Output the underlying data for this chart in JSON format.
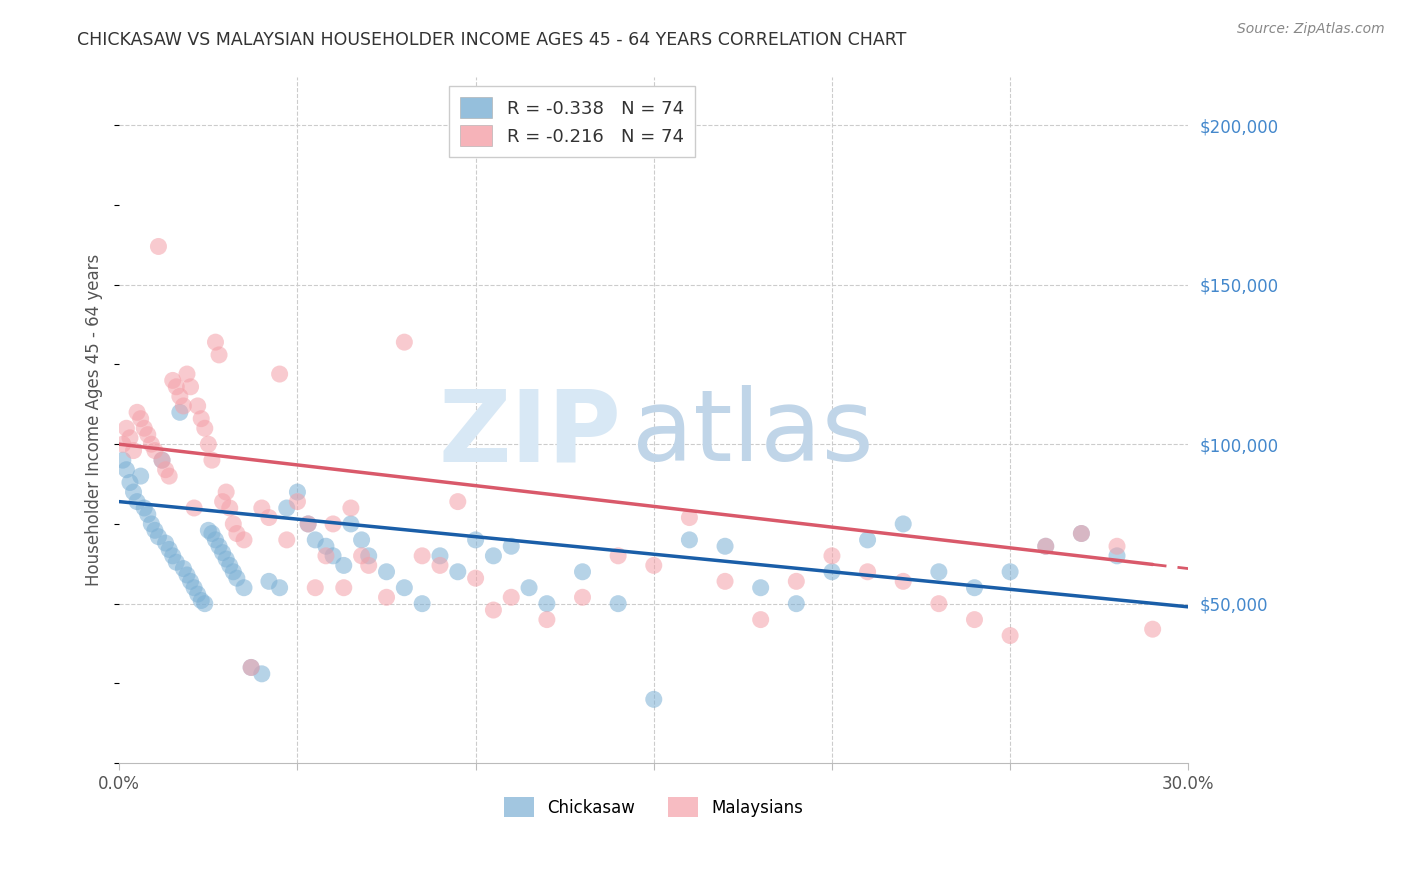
{
  "title": "CHICKASAW VS MALAYSIAN HOUSEHOLDER INCOME AGES 45 - 64 YEARS CORRELATION CHART",
  "source": "Source: ZipAtlas.com",
  "ylabel": "Householder Income Ages 45 - 64 years",
  "y_ticks": [
    50000,
    100000,
    150000,
    200000
  ],
  "y_tick_labels": [
    "$50,000",
    "$100,000",
    "$150,000",
    "$200,000"
  ],
  "x_range": [
    0.0,
    0.3
  ],
  "y_range": [
    0,
    215000
  ],
  "legend_label1": "Chickasaw",
  "legend_label2": "Malaysians",
  "R_chickasaw": -0.338,
  "N_chickasaw": 74,
  "R_malaysians": -0.216,
  "N_malaysians": 74,
  "color_chickasaw": "#7BAFD4",
  "color_malaysian": "#F4A0A8",
  "line_color_chickasaw": "#1A5EA8",
  "line_color_malaysian": "#D9596A",
  "background_color": "#FFFFFF",
  "chickasaw_intercept": 82000,
  "chickasaw_slope": -110000,
  "malaysian_intercept": 100000,
  "malaysian_slope": -130000,
  "chickasaw_x": [
    0.001,
    0.002,
    0.003,
    0.004,
    0.005,
    0.006,
    0.007,
    0.008,
    0.009,
    0.01,
    0.011,
    0.012,
    0.013,
    0.014,
    0.015,
    0.016,
    0.017,
    0.018,
    0.019,
    0.02,
    0.021,
    0.022,
    0.023,
    0.024,
    0.025,
    0.026,
    0.027,
    0.028,
    0.029,
    0.03,
    0.031,
    0.032,
    0.033,
    0.035,
    0.037,
    0.04,
    0.042,
    0.045,
    0.047,
    0.05,
    0.053,
    0.055,
    0.058,
    0.06,
    0.063,
    0.065,
    0.068,
    0.07,
    0.075,
    0.08,
    0.085,
    0.09,
    0.095,
    0.1,
    0.105,
    0.11,
    0.115,
    0.12,
    0.13,
    0.14,
    0.15,
    0.16,
    0.17,
    0.18,
    0.19,
    0.2,
    0.21,
    0.22,
    0.23,
    0.24,
    0.25,
    0.26,
    0.27,
    0.28
  ],
  "chickasaw_y": [
    95000,
    92000,
    88000,
    85000,
    82000,
    90000,
    80000,
    78000,
    75000,
    73000,
    71000,
    95000,
    69000,
    67000,
    65000,
    63000,
    110000,
    61000,
    59000,
    57000,
    55000,
    53000,
    51000,
    50000,
    73000,
    72000,
    70000,
    68000,
    66000,
    64000,
    62000,
    60000,
    58000,
    55000,
    30000,
    28000,
    57000,
    55000,
    80000,
    85000,
    75000,
    70000,
    68000,
    65000,
    62000,
    75000,
    70000,
    65000,
    60000,
    55000,
    50000,
    65000,
    60000,
    70000,
    65000,
    68000,
    55000,
    50000,
    60000,
    50000,
    20000,
    70000,
    68000,
    55000,
    50000,
    60000,
    70000,
    75000,
    60000,
    55000,
    60000,
    68000,
    72000,
    65000
  ],
  "malaysian_x": [
    0.001,
    0.002,
    0.003,
    0.004,
    0.005,
    0.006,
    0.007,
    0.008,
    0.009,
    0.01,
    0.011,
    0.012,
    0.013,
    0.014,
    0.015,
    0.016,
    0.017,
    0.018,
    0.019,
    0.02,
    0.021,
    0.022,
    0.023,
    0.024,
    0.025,
    0.026,
    0.027,
    0.028,
    0.029,
    0.03,
    0.031,
    0.032,
    0.033,
    0.035,
    0.037,
    0.04,
    0.042,
    0.045,
    0.047,
    0.05,
    0.053,
    0.055,
    0.058,
    0.06,
    0.063,
    0.065,
    0.068,
    0.07,
    0.075,
    0.08,
    0.085,
    0.09,
    0.095,
    0.1,
    0.105,
    0.11,
    0.12,
    0.13,
    0.14,
    0.15,
    0.16,
    0.17,
    0.18,
    0.19,
    0.2,
    0.21,
    0.22,
    0.23,
    0.24,
    0.25,
    0.26,
    0.27,
    0.28,
    0.29
  ],
  "malaysian_y": [
    100000,
    105000,
    102000,
    98000,
    110000,
    108000,
    105000,
    103000,
    100000,
    98000,
    162000,
    95000,
    92000,
    90000,
    120000,
    118000,
    115000,
    112000,
    122000,
    118000,
    80000,
    112000,
    108000,
    105000,
    100000,
    95000,
    132000,
    128000,
    82000,
    85000,
    80000,
    75000,
    72000,
    70000,
    30000,
    80000,
    77000,
    122000,
    70000,
    82000,
    75000,
    55000,
    65000,
    75000,
    55000,
    80000,
    65000,
    62000,
    52000,
    132000,
    65000,
    62000,
    82000,
    58000,
    48000,
    52000,
    45000,
    52000,
    65000,
    62000,
    77000,
    57000,
    45000,
    57000,
    65000,
    60000,
    57000,
    50000,
    45000,
    40000,
    68000,
    72000,
    68000,
    42000
  ]
}
